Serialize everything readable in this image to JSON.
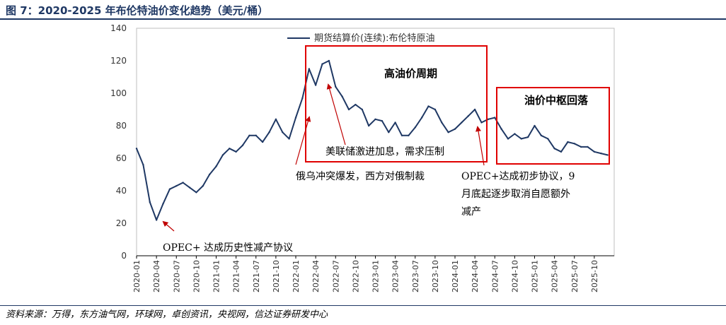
{
  "figure_title": "图 7：2020-2025 年布伦特油价变化趋势（美元/桶）",
  "source": "资料来源：万得，东方油气网，环球网，卓创资讯，央视网，信达证券研发中心",
  "chart_data": {
    "type": "line",
    "title": "",
    "xlabel": "",
    "ylabel": "",
    "ylim": [
      0,
      140
    ],
    "yticks": [
      "0",
      "20",
      "40",
      "60",
      "80",
      "100",
      "120",
      "140"
    ],
    "xticks": [
      "2020-01",
      "2020-04",
      "2020-07",
      "2020-10",
      "2021-01",
      "2021-04",
      "2021-07",
      "2021-10",
      "2022-01",
      "2022-04",
      "2022-07",
      "2022-10",
      "2023-01",
      "2023-04",
      "2023-07",
      "2023-10",
      "2024-01",
      "2024-04",
      "2024-07",
      "2024-10",
      "2025-01",
      "2025-04",
      "2025-07",
      "2025-10"
    ],
    "legend": {
      "position": "top-left",
      "label": "期货结算价(连续):布伦特原油"
    },
    "series": [
      {
        "name": "期货结算价(连续):布伦特原油",
        "color": "#1F3864",
        "x": [
          "2020-01",
          "2020-02",
          "2020-03",
          "2020-04",
          "2020-05",
          "2020-06",
          "2020-07",
          "2020-08",
          "2020-09",
          "2020-10",
          "2020-11",
          "2020-12",
          "2021-01",
          "2021-02",
          "2021-03",
          "2021-04",
          "2021-05",
          "2021-06",
          "2021-07",
          "2021-08",
          "2021-09",
          "2021-10",
          "2021-11",
          "2021-12",
          "2022-01",
          "2022-02",
          "2022-03",
          "2022-04",
          "2022-05",
          "2022-06",
          "2022-07",
          "2022-08",
          "2022-09",
          "2022-10",
          "2022-11",
          "2022-12",
          "2023-01",
          "2023-02",
          "2023-03",
          "2023-04",
          "2023-05",
          "2023-06",
          "2023-07",
          "2023-08",
          "2023-09",
          "2023-10",
          "2023-11",
          "2023-12",
          "2024-01",
          "2024-02",
          "2024-03",
          "2024-04",
          "2024-05",
          "2024-06",
          "2024-07",
          "2024-08",
          "2024-09",
          "2024-10",
          "2024-11",
          "2024-12",
          "2025-01",
          "2025-02",
          "2025-03",
          "2025-04",
          "2025-05",
          "2025-06",
          "2025-07",
          "2025-08",
          "2025-09",
          "2025-10",
          "2025-11",
          "2025-12"
        ],
        "values": [
          66,
          56,
          33,
          22,
          32,
          41,
          43,
          45,
          42,
          39,
          43,
          50,
          55,
          62,
          66,
          64,
          68,
          74,
          74,
          70,
          76,
          84,
          76,
          72,
          85,
          97,
          115,
          105,
          118,
          120,
          104,
          98,
          90,
          93,
          90,
          80,
          84,
          83,
          76,
          82,
          74,
          74,
          79,
          85,
          92,
          90,
          82,
          76,
          78,
          82,
          86,
          90,
          82,
          84,
          85,
          78,
          72,
          75,
          72,
          73,
          80,
          74,
          72,
          66,
          64,
          70,
          69,
          67,
          67,
          64,
          63,
          62
        ]
      }
    ],
    "annotations": [
      {
        "label": "高油价周期"
      },
      {
        "label": "油价中枢回落"
      },
      {
        "label": "美联储激进加息，需求压制"
      },
      {
        "label": "俄乌冲突爆发，西方对俄制裁"
      },
      {
        "label_lines": [
          "OPEC+达成初步协议，9",
          "月底起逐步取消自愿额外",
          "减产"
        ]
      },
      {
        "label": "OPEC+ 达成历史性减产协议"
      }
    ],
    "colors": {
      "line": "#1F3864",
      "box": "#E00000",
      "arrow": "#C00000",
      "grid": "none"
    }
  }
}
